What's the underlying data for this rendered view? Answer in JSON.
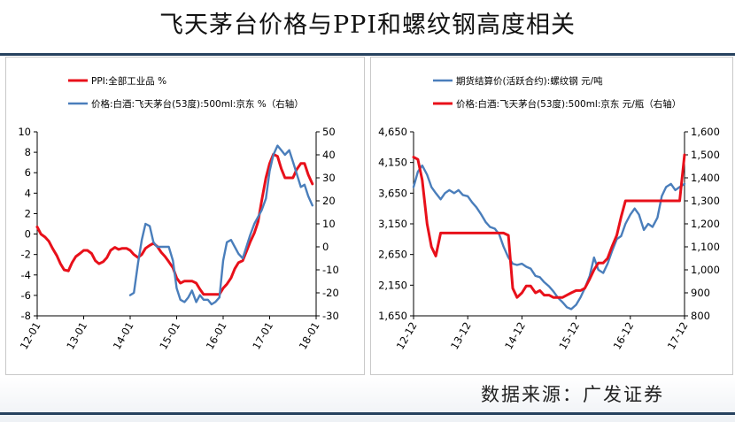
{
  "header": {
    "title": "飞天茅台价格与PPI和螺纹钢高度相关"
  },
  "footer": {
    "source": "数据来源：广发证券"
  },
  "chart_data": [
    {
      "type": "line",
      "legend": {
        "placement": "top-left"
      },
      "x_ticks": [
        "12-01",
        "13-01",
        "14-01",
        "15-01",
        "16-01",
        "17-01",
        "18-01"
      ],
      "y_left": {
        "ticks": [
          "10",
          "8",
          "6",
          "4",
          "2",
          "0",
          "-2",
          "-4",
          "-6",
          "-8"
        ],
        "range": [
          -8,
          10
        ]
      },
      "y_right": {
        "ticks": [
          "50",
          "40",
          "30",
          "20",
          "10",
          "0",
          "-10",
          "-20",
          "-30"
        ],
        "range": [
          -30,
          50
        ]
      },
      "series": [
        {
          "name": "PPI:全部工业品 %",
          "axis": "left",
          "color": "#e8101a",
          "points": [
            [
              2012.0,
              0.7
            ],
            [
              2012.08,
              0.0
            ],
            [
              2012.17,
              -0.3
            ],
            [
              2012.25,
              -0.7
            ],
            [
              2012.33,
              -1.4
            ],
            [
              2012.42,
              -2.1
            ],
            [
              2012.5,
              -2.9
            ],
            [
              2012.58,
              -3.5
            ],
            [
              2012.67,
              -3.6
            ],
            [
              2012.75,
              -2.8
            ],
            [
              2012.83,
              -2.2
            ],
            [
              2012.92,
              -1.9
            ],
            [
              2013.0,
              -1.6
            ],
            [
              2013.08,
              -1.6
            ],
            [
              2013.17,
              -1.9
            ],
            [
              2013.25,
              -2.6
            ],
            [
              2013.33,
              -2.9
            ],
            [
              2013.42,
              -2.7
            ],
            [
              2013.5,
              -2.3
            ],
            [
              2013.58,
              -1.6
            ],
            [
              2013.67,
              -1.3
            ],
            [
              2013.75,
              -1.5
            ],
            [
              2013.83,
              -1.4
            ],
            [
              2013.92,
              -1.4
            ],
            [
              2014.0,
              -1.6
            ],
            [
              2014.08,
              -2.0
            ],
            [
              2014.17,
              -2.3
            ],
            [
              2014.25,
              -2.0
            ],
            [
              2014.33,
              -1.4
            ],
            [
              2014.42,
              -1.1
            ],
            [
              2014.5,
              -0.9
            ],
            [
              2014.58,
              -1.2
            ],
            [
              2014.67,
              -1.8
            ],
            [
              2014.75,
              -2.2
            ],
            [
              2014.83,
              -2.7
            ],
            [
              2014.92,
              -3.3
            ],
            [
              2015.0,
              -4.3
            ],
            [
              2015.08,
              -4.8
            ],
            [
              2015.17,
              -4.6
            ],
            [
              2015.25,
              -4.6
            ],
            [
              2015.33,
              -4.6
            ],
            [
              2015.42,
              -4.8
            ],
            [
              2015.5,
              -5.4
            ],
            [
              2015.58,
              -5.9
            ],
            [
              2015.67,
              -5.9
            ],
            [
              2015.75,
              -5.9
            ],
            [
              2015.83,
              -5.9
            ],
            [
              2015.92,
              -5.9
            ],
            [
              2016.0,
              -5.3
            ],
            [
              2016.08,
              -4.9
            ],
            [
              2016.17,
              -4.3
            ],
            [
              2016.25,
              -3.4
            ],
            [
              2016.33,
              -2.8
            ],
            [
              2016.42,
              -2.6
            ],
            [
              2016.5,
              -1.7
            ],
            [
              2016.58,
              -0.8
            ],
            [
              2016.67,
              0.1
            ],
            [
              2016.75,
              1.2
            ],
            [
              2016.83,
              3.3
            ],
            [
              2016.92,
              5.5
            ],
            [
              2017.0,
              6.9
            ],
            [
              2017.08,
              7.8
            ],
            [
              2017.17,
              7.6
            ],
            [
              2017.25,
              6.4
            ],
            [
              2017.33,
              5.5
            ],
            [
              2017.42,
              5.5
            ],
            [
              2017.5,
              5.5
            ],
            [
              2017.58,
              6.3
            ],
            [
              2017.67,
              6.9
            ],
            [
              2017.75,
              6.9
            ],
            [
              2017.83,
              5.8
            ],
            [
              2017.92,
              4.9
            ]
          ]
        },
        {
          "name": "价格:白酒:飞天茅台(53度):500ml:京东 %（右轴）",
          "axis": "right",
          "color": "#4a7ebb",
          "points": [
            [
              2014.0,
              -21
            ],
            [
              2014.08,
              -20
            ],
            [
              2014.17,
              -7
            ],
            [
              2014.25,
              3
            ],
            [
              2014.33,
              10
            ],
            [
              2014.42,
              9
            ],
            [
              2014.5,
              2
            ],
            [
              2014.58,
              0
            ],
            [
              2014.67,
              0
            ],
            [
              2014.75,
              0
            ],
            [
              2014.83,
              0
            ],
            [
              2014.92,
              -6
            ],
            [
              2015.0,
              -18
            ],
            [
              2015.08,
              -23
            ],
            [
              2015.17,
              -24
            ],
            [
              2015.25,
              -22
            ],
            [
              2015.33,
              -19
            ],
            [
              2015.42,
              -24
            ],
            [
              2015.5,
              -21
            ],
            [
              2015.58,
              -23
            ],
            [
              2015.67,
              -23
            ],
            [
              2015.75,
              -25
            ],
            [
              2015.83,
              -24
            ],
            [
              2015.92,
              -22
            ],
            [
              2016.0,
              -6
            ],
            [
              2016.08,
              2
            ],
            [
              2016.17,
              3
            ],
            [
              2016.25,
              0
            ],
            [
              2016.33,
              -3
            ],
            [
              2016.42,
              -5
            ],
            [
              2016.5,
              0
            ],
            [
              2016.58,
              5
            ],
            [
              2016.67,
              10
            ],
            [
              2016.75,
              13
            ],
            [
              2016.83,
              16
            ],
            [
              2016.92,
              21
            ],
            [
              2017.0,
              33
            ],
            [
              2017.08,
              40
            ],
            [
              2017.17,
              44
            ],
            [
              2017.25,
              42
            ],
            [
              2017.33,
              40
            ],
            [
              2017.42,
              42
            ],
            [
              2017.5,
              37
            ],
            [
              2017.58,
              32
            ],
            [
              2017.67,
              26
            ],
            [
              2017.75,
              27
            ],
            [
              2017.83,
              22
            ],
            [
              2017.92,
              18
            ]
          ]
        }
      ]
    },
    {
      "type": "line",
      "legend": {
        "placement": "top-left"
      },
      "x_ticks": [
        "12-12",
        "13-12",
        "14-12",
        "15-12",
        "16-12",
        "17-12"
      ],
      "y_left": {
        "ticks": [
          "4,650",
          "4,150",
          "3,650",
          "3,150",
          "2,650",
          "2,150",
          "1,650"
        ],
        "range": [
          1650,
          4650
        ]
      },
      "y_right": {
        "ticks": [
          "1,600",
          "1,500",
          "1,400",
          "1,300",
          "1,200",
          "1,100",
          "1,000",
          "900",
          "800"
        ],
        "range": [
          800,
          1600
        ]
      },
      "series": [
        {
          "name": "期货结算价(活跃合约):螺纹钢 元/吨",
          "axis": "left",
          "color": "#4a7ebb",
          "points": [
            [
              2012.92,
              3750
            ],
            [
              2013.0,
              4000
            ],
            [
              2013.08,
              4100
            ],
            [
              2013.17,
              3950
            ],
            [
              2013.25,
              3750
            ],
            [
              2013.33,
              3650
            ],
            [
              2013.42,
              3550
            ],
            [
              2013.5,
              3650
            ],
            [
              2013.58,
              3700
            ],
            [
              2013.67,
              3650
            ],
            [
              2013.75,
              3700
            ],
            [
              2013.83,
              3620
            ],
            [
              2013.92,
              3600
            ],
            [
              2014.0,
              3500
            ],
            [
              2014.08,
              3420
            ],
            [
              2014.17,
              3300
            ],
            [
              2014.25,
              3180
            ],
            [
              2014.33,
              3100
            ],
            [
              2014.42,
              3070
            ],
            [
              2014.5,
              2980
            ],
            [
              2014.58,
              2780
            ],
            [
              2014.67,
              2600
            ],
            [
              2014.75,
              2500
            ],
            [
              2014.83,
              2480
            ],
            [
              2014.92,
              2500
            ],
            [
              2015.0,
              2450
            ],
            [
              2015.08,
              2420
            ],
            [
              2015.17,
              2300
            ],
            [
              2015.25,
              2280
            ],
            [
              2015.33,
              2200
            ],
            [
              2015.42,
              2130
            ],
            [
              2015.5,
              2050
            ],
            [
              2015.58,
              1950
            ],
            [
              2015.67,
              1870
            ],
            [
              2015.75,
              1790
            ],
            [
              2015.83,
              1760
            ],
            [
              2015.92,
              1830
            ],
            [
              2016.0,
              1950
            ],
            [
              2016.08,
              2100
            ],
            [
              2016.17,
              2300
            ],
            [
              2016.25,
              2600
            ],
            [
              2016.33,
              2400
            ],
            [
              2016.42,
              2350
            ],
            [
              2016.5,
              2500
            ],
            [
              2016.58,
              2700
            ],
            [
              2016.67,
              2900
            ],
            [
              2016.75,
              2950
            ],
            [
              2016.83,
              3150
            ],
            [
              2016.92,
              3300
            ],
            [
              2017.0,
              3400
            ],
            [
              2017.08,
              3300
            ],
            [
              2017.17,
              3050
            ],
            [
              2017.25,
              3150
            ],
            [
              2017.33,
              3100
            ],
            [
              2017.42,
              3250
            ],
            [
              2017.5,
              3600
            ],
            [
              2017.58,
              3750
            ],
            [
              2017.67,
              3800
            ],
            [
              2017.75,
              3700
            ],
            [
              2017.83,
              3750
            ],
            [
              2017.92,
              3800
            ]
          ]
        },
        {
          "name": "价格:白酒:飞天茅台(53度):500ml:京东 元/瓶（右轴）",
          "axis": "right",
          "color": "#e8101a",
          "points": [
            [
              2012.92,
              1490
            ],
            [
              2013.0,
              1480
            ],
            [
              2013.08,
              1390
            ],
            [
              2013.17,
              1200
            ],
            [
              2013.25,
              1100
            ],
            [
              2013.33,
              1060
            ],
            [
              2013.42,
              1160
            ],
            [
              2013.5,
              1160
            ],
            [
              2013.58,
              1160
            ],
            [
              2013.67,
              1160
            ],
            [
              2013.75,
              1160
            ],
            [
              2013.83,
              1160
            ],
            [
              2013.92,
              1160
            ],
            [
              2014.0,
              1160
            ],
            [
              2014.08,
              1160
            ],
            [
              2014.17,
              1160
            ],
            [
              2014.25,
              1160
            ],
            [
              2014.33,
              1160
            ],
            [
              2014.42,
              1160
            ],
            [
              2014.5,
              1160
            ],
            [
              2014.58,
              1160
            ],
            [
              2014.67,
              1150
            ],
            [
              2014.75,
              920
            ],
            [
              2014.83,
              880
            ],
            [
              2014.92,
              900
            ],
            [
              2015.0,
              930
            ],
            [
              2015.08,
              930
            ],
            [
              2015.17,
              900
            ],
            [
              2015.25,
              910
            ],
            [
              2015.33,
              890
            ],
            [
              2015.42,
              890
            ],
            [
              2015.5,
              880
            ],
            [
              2015.58,
              880
            ],
            [
              2015.67,
              880
            ],
            [
              2015.75,
              890
            ],
            [
              2015.83,
              900
            ],
            [
              2015.92,
              910
            ],
            [
              2016.0,
              910
            ],
            [
              2016.08,
              920
            ],
            [
              2016.17,
              960
            ],
            [
              2016.25,
              1000
            ],
            [
              2016.33,
              1030
            ],
            [
              2016.42,
              1030
            ],
            [
              2016.5,
              1050
            ],
            [
              2016.58,
              1100
            ],
            [
              2016.67,
              1150
            ],
            [
              2016.75,
              1230
            ],
            [
              2016.83,
              1300
            ],
            [
              2016.92,
              1300
            ],
            [
              2017.0,
              1300
            ],
            [
              2017.08,
              1300
            ],
            [
              2017.17,
              1300
            ],
            [
              2017.25,
              1300
            ],
            [
              2017.33,
              1300
            ],
            [
              2017.42,
              1300
            ],
            [
              2017.5,
              1300
            ],
            [
              2017.58,
              1300
            ],
            [
              2017.67,
              1300
            ],
            [
              2017.75,
              1300
            ],
            [
              2017.83,
              1300
            ],
            [
              2017.92,
              1500
            ]
          ]
        }
      ]
    }
  ]
}
